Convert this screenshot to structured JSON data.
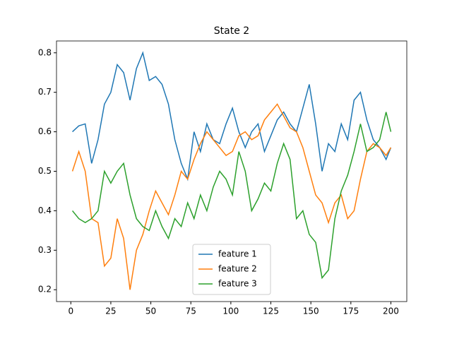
{
  "chart_data": {
    "type": "line",
    "title": "State 2",
    "x": [
      1,
      5,
      9,
      13,
      17,
      21,
      25,
      29,
      33,
      37,
      41,
      45,
      49,
      53,
      57,
      61,
      65,
      69,
      73,
      77,
      81,
      85,
      89,
      93,
      97,
      101,
      105,
      109,
      113,
      117,
      121,
      125,
      129,
      133,
      137,
      141,
      145,
      149,
      153,
      157,
      161,
      165,
      169,
      173,
      177,
      181,
      185,
      189,
      193,
      197,
      200
    ],
    "series": [
      {
        "name": "feature 1",
        "color": "#1f77b4",
        "values": [
          0.6,
          0.615,
          0.62,
          0.52,
          0.58,
          0.67,
          0.7,
          0.77,
          0.75,
          0.68,
          0.76,
          0.8,
          0.73,
          0.74,
          0.72,
          0.67,
          0.58,
          0.52,
          0.48,
          0.6,
          0.55,
          0.62,
          0.58,
          0.57,
          0.62,
          0.66,
          0.6,
          0.56,
          0.6,
          0.62,
          0.55,
          0.59,
          0.63,
          0.65,
          0.62,
          0.6,
          0.66,
          0.72,
          0.62,
          0.5,
          0.57,
          0.55,
          0.62,
          0.58,
          0.68,
          0.7,
          0.63,
          0.58,
          0.56,
          0.53,
          0.56
        ]
      },
      {
        "name": "feature 2",
        "color": "#ff7f0e",
        "values": [
          0.5,
          0.55,
          0.5,
          0.38,
          0.37,
          0.26,
          0.28,
          0.38,
          0.33,
          0.2,
          0.3,
          0.34,
          0.4,
          0.45,
          0.42,
          0.39,
          0.44,
          0.5,
          0.48,
          0.53,
          0.57,
          0.6,
          0.58,
          0.56,
          0.54,
          0.55,
          0.59,
          0.6,
          0.58,
          0.59,
          0.63,
          0.65,
          0.67,
          0.64,
          0.61,
          0.6,
          0.56,
          0.5,
          0.44,
          0.42,
          0.37,
          0.42,
          0.44,
          0.38,
          0.4,
          0.48,
          0.55,
          0.57,
          0.56,
          0.54,
          0.56
        ]
      },
      {
        "name": "feature 3",
        "color": "#2ca02c",
        "values": [
          0.4,
          0.38,
          0.37,
          0.38,
          0.4,
          0.5,
          0.47,
          0.5,
          0.52,
          0.44,
          0.38,
          0.36,
          0.35,
          0.4,
          0.36,
          0.33,
          0.38,
          0.36,
          0.42,
          0.38,
          0.44,
          0.4,
          0.46,
          0.5,
          0.48,
          0.44,
          0.55,
          0.5,
          0.4,
          0.43,
          0.47,
          0.45,
          0.52,
          0.57,
          0.53,
          0.38,
          0.4,
          0.34,
          0.32,
          0.23,
          0.25,
          0.38,
          0.45,
          0.49,
          0.55,
          0.62,
          0.55,
          0.56,
          0.58,
          0.65,
          0.6
        ]
      }
    ],
    "xlim": [
      -8.95,
      209.95
    ],
    "xticks": [
      0,
      25,
      50,
      75,
      100,
      125,
      150,
      175,
      200
    ],
    "ylim": [
      0.17,
      0.83
    ],
    "yticks": [
      0.2,
      0.3,
      0.4,
      0.5,
      0.6,
      0.7,
      0.8
    ],
    "legend": "lower center"
  }
}
